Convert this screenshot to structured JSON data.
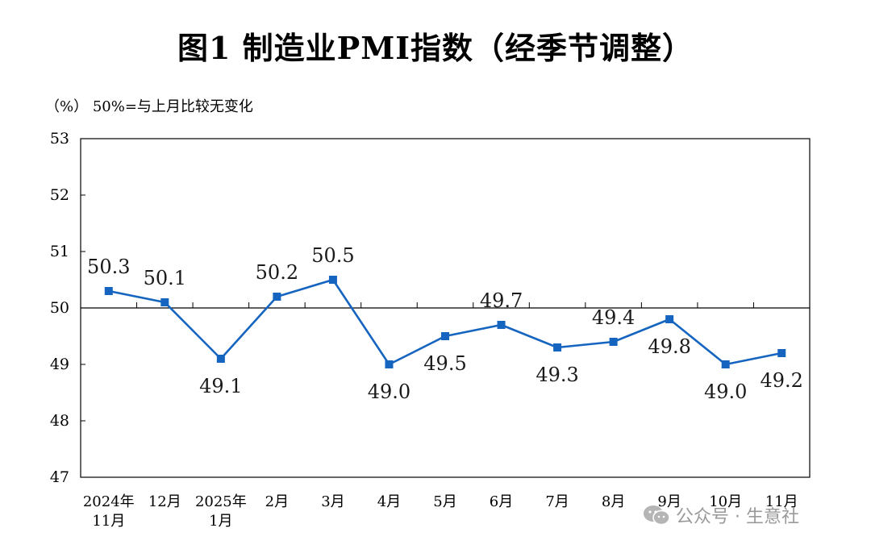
{
  "title": "图1  制造业PMI指数（经季节调整）",
  "unit_note": "（%）  50%=与上月比较无变化",
  "watermark": {
    "text": "公众号 · 生意社",
    "icon": "wechat-icon"
  },
  "chart_data": {
    "type": "line",
    "title": "图1  制造业PMI指数（经季节调整）",
    "ylabel": "（%）",
    "ylim": [
      47,
      53
    ],
    "y_ticks": [
      47,
      48,
      49,
      50,
      51,
      52,
      53
    ],
    "reference_line": 50,
    "reference_note": "50%=与上月比较无变化",
    "grid": false,
    "categories": [
      [
        "2024年",
        "11月"
      ],
      [
        "12月"
      ],
      [
        "2025年",
        "1月"
      ],
      [
        "2月"
      ],
      [
        "3月"
      ],
      [
        "4月"
      ],
      [
        "5月"
      ],
      [
        "6月"
      ],
      [
        "7月"
      ],
      [
        "8月"
      ],
      [
        "9月"
      ],
      [
        "10月"
      ],
      [
        "11月"
      ]
    ],
    "values": [
      50.3,
      50.1,
      49.1,
      50.2,
      50.5,
      49.0,
      49.5,
      49.7,
      49.3,
      49.4,
      49.8,
      49.0,
      49.2
    ],
    "data_labels": [
      "50.3",
      "50.1",
      "49.1",
      "50.2",
      "50.5",
      "49.0",
      "49.5",
      "49.7",
      "49.3",
      "49.4",
      "49.8",
      "49.0",
      "49.2"
    ],
    "label_positions": [
      "above",
      "above",
      "below",
      "above",
      "above",
      "below",
      "below",
      "above",
      "below",
      "above",
      "below",
      "below",
      "below"
    ],
    "line_color": "#1565c0",
    "marker": "square"
  }
}
